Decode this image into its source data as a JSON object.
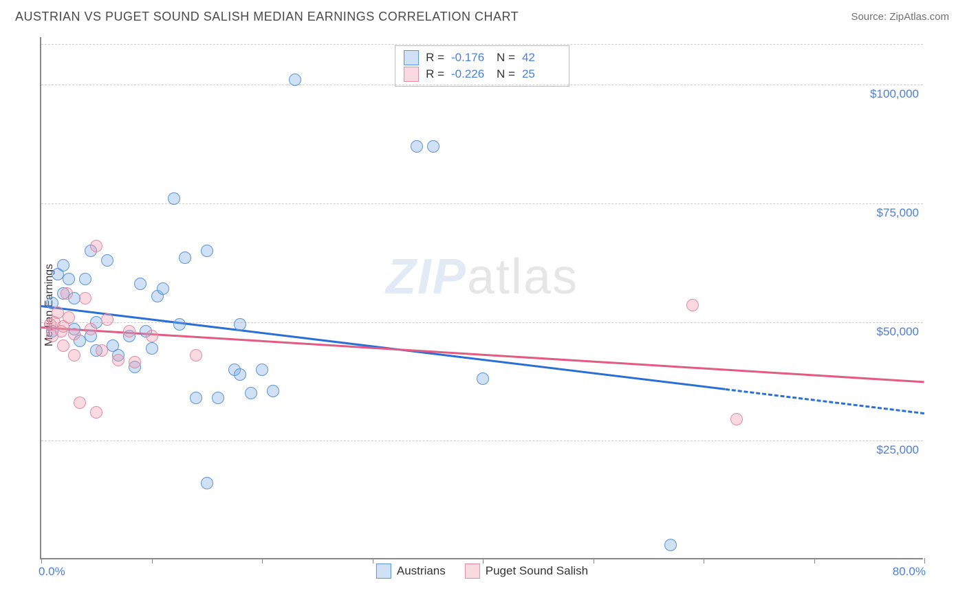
{
  "header": {
    "title": "AUSTRIAN VS PUGET SOUND SALISH MEDIAN EARNINGS CORRELATION CHART",
    "source": "Source: ZipAtlas.com"
  },
  "chart": {
    "type": "scatter",
    "y_axis_label": "Median Earnings",
    "xlim": [
      0,
      80
    ],
    "ylim": [
      0,
      110000
    ],
    "x_ticks": [
      0,
      10,
      20,
      30,
      40,
      50,
      60,
      70,
      80
    ],
    "x_min_label": "0.0%",
    "x_max_label": "80.0%",
    "y_gridlines": [
      25000,
      50000,
      75000,
      100000
    ],
    "y_labels": [
      "$25,000",
      "$50,000",
      "$75,000",
      "$100,000"
    ],
    "background_color": "#ffffff",
    "grid_color": "#cccccc",
    "axis_color": "#888888",
    "marker_radius": 9,
    "marker_border_width": 1.5,
    "title_fontsize": 18,
    "label_fontsize": 17,
    "series": [
      {
        "name": "Austrians",
        "fill": "rgba(120,170,230,0.35)",
        "stroke": "#5a93d6",
        "r": -0.176,
        "n": 42,
        "trend": {
          "x1": 0,
          "y1": 53500,
          "x2": 62,
          "y2": 36000,
          "dash_to_x": 80,
          "color": "#2a6fd6",
          "width": 3
        },
        "points": [
          [
            1,
            48000
          ],
          [
            1,
            54000
          ],
          [
            1.5,
            60000
          ],
          [
            2,
            62000
          ],
          [
            2,
            56000
          ],
          [
            2.5,
            59000
          ],
          [
            3,
            48500
          ],
          [
            3,
            55000
          ],
          [
            3.5,
            46000
          ],
          [
            4,
            59000
          ],
          [
            4.5,
            65000
          ],
          [
            4.5,
            47000
          ],
          [
            5,
            44000
          ],
          [
            5,
            50000
          ],
          [
            6,
            63000
          ],
          [
            6.5,
            45000
          ],
          [
            7,
            43000
          ],
          [
            8,
            47000
          ],
          [
            8.5,
            40500
          ],
          [
            9,
            58000
          ],
          [
            9.5,
            48000
          ],
          [
            10,
            44500
          ],
          [
            10.5,
            55500
          ],
          [
            11,
            57000
          ],
          [
            12,
            76000
          ],
          [
            12.5,
            49500
          ],
          [
            13,
            63500
          ],
          [
            14,
            34000
          ],
          [
            15,
            65000
          ],
          [
            15,
            16000
          ],
          [
            16,
            34000
          ],
          [
            17.5,
            40000
          ],
          [
            18,
            39000
          ],
          [
            18,
            49500
          ],
          [
            19,
            35000
          ],
          [
            20,
            40000
          ],
          [
            21,
            35500
          ],
          [
            23,
            101000
          ],
          [
            34,
            87000
          ],
          [
            35.5,
            87000
          ],
          [
            40,
            38000
          ],
          [
            57,
            3000
          ]
        ]
      },
      {
        "name": "Puget Sound Salish",
        "fill": "rgba(240,150,170,0.35)",
        "stroke": "#e08ba2",
        "r": -0.226,
        "n": 25,
        "trend": {
          "x1": 0,
          "y1": 49000,
          "x2": 80,
          "y2": 37500,
          "color": "#e35b82",
          "width": 3
        },
        "points": [
          [
            0.8,
            49500
          ],
          [
            1,
            47000
          ],
          [
            1.2,
            50000
          ],
          [
            1.5,
            52000
          ],
          [
            1.8,
            48000
          ],
          [
            2,
            45000
          ],
          [
            2,
            49000
          ],
          [
            2.3,
            56000
          ],
          [
            2.5,
            51000
          ],
          [
            3,
            47500
          ],
          [
            3,
            43000
          ],
          [
            3.5,
            33000
          ],
          [
            4,
            55000
          ],
          [
            4.5,
            48500
          ],
          [
            5,
            66000
          ],
          [
            5,
            31000
          ],
          [
            5.5,
            44000
          ],
          [
            6,
            50500
          ],
          [
            7,
            42000
          ],
          [
            8,
            48000
          ],
          [
            8.5,
            41500
          ],
          [
            10,
            47000
          ],
          [
            14,
            43000
          ],
          [
            59,
            53500
          ],
          [
            63,
            29500
          ]
        ]
      }
    ],
    "watermark": {
      "zip": "ZIP",
      "atlas": "atlas"
    },
    "legend_bottom": [
      "Austrians",
      "Puget Sound Salish"
    ]
  }
}
